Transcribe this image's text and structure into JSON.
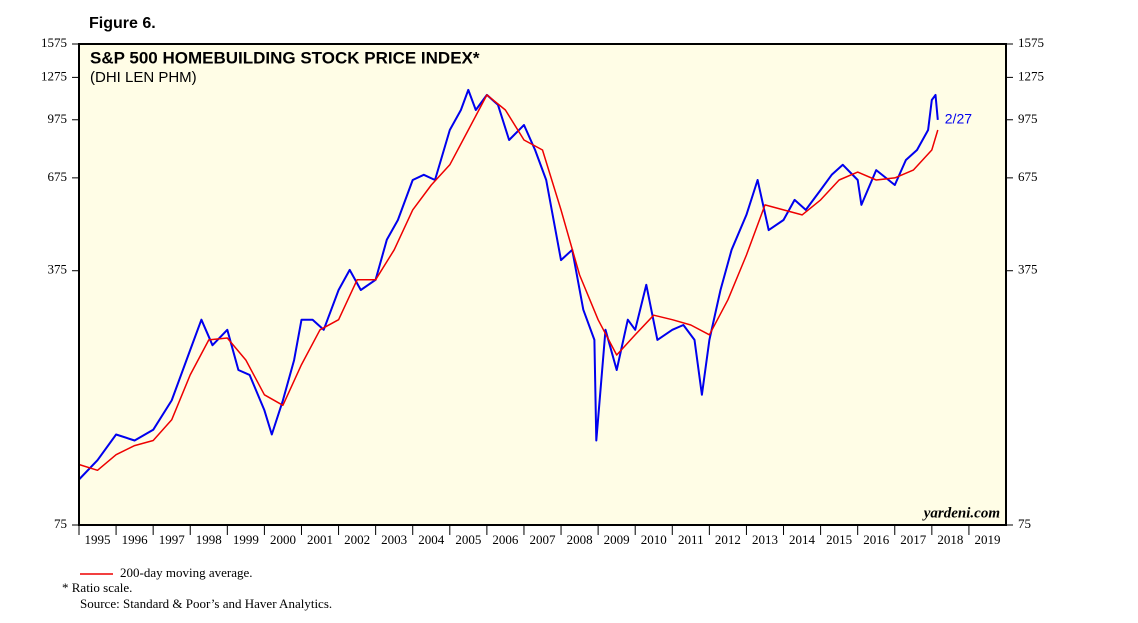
{
  "chart_data": {
    "type": "line",
    "figure_label": "Figure 6.",
    "title": "S&P 500 HOMEBUILDING STOCK PRICE INDEX*",
    "subtitle": "(DHI LEN PHM)",
    "watermark": "yardeni.com",
    "annotation": "2/27",
    "footnote": "*  Ratio scale.",
    "source": "Source: Standard & Poor’s and Haver Analytics.",
    "log_scale": true,
    "xlim": [
      1995,
      2020
    ],
    "xticks": [
      1995,
      1996,
      1997,
      1998,
      1999,
      2000,
      2001,
      2002,
      2003,
      2004,
      2005,
      2006,
      2007,
      2008,
      2009,
      2010,
      2011,
      2012,
      2013,
      2014,
      2015,
      2016,
      2017,
      2018,
      2019
    ],
    "ylim": [
      75,
      1575
    ],
    "yticks": [
      75,
      375,
      675,
      975,
      1275,
      1575
    ],
    "series": [
      {
        "color": "#0000ee",
        "x": [
          1995.0,
          1995.5,
          1996.0,
          1996.5,
          1997.0,
          1997.5,
          1998.0,
          1998.3,
          1998.6,
          1999.0,
          1999.3,
          1999.6,
          2000.0,
          2000.2,
          2000.5,
          2000.8,
          2001.0,
          2001.3,
          2001.6,
          2002.0,
          2002.3,
          2002.6,
          2003.0,
          2003.3,
          2003.6,
          2004.0,
          2004.3,
          2004.6,
          2005.0,
          2005.3,
          2005.5,
          2005.7,
          2006.0,
          2006.3,
          2006.6,
          2007.0,
          2007.3,
          2007.6,
          2008.0,
          2008.3,
          2008.6,
          2008.9,
          2008.95,
          2009.2,
          2009.5,
          2009.8,
          2010.0,
          2010.3,
          2010.6,
          2011.0,
          2011.3,
          2011.6,
          2011.8,
          2012.0,
          2012.3,
          2012.6,
          2013.0,
          2013.3,
          2013.6,
          2014.0,
          2014.3,
          2014.6,
          2015.0,
          2015.3,
          2015.6,
          2016.0,
          2016.1,
          2016.5,
          2017.0,
          2017.3,
          2017.6,
          2017.9,
          2018.0,
          2018.1,
          2018.16
        ],
        "values": [
          100,
          113,
          133,
          128,
          137,
          165,
          227,
          275,
          234,
          258,
          200,
          194,
          155,
          133,
          165,
          213,
          275,
          275,
          258,
          332,
          377,
          332,
          354,
          456,
          517,
          666,
          688,
          666,
          914,
          1037,
          1178,
          1037,
          1141,
          1071,
          858,
          943,
          805,
          666,
          401,
          428,
          293,
          242,
          128,
          258,
          200,
          275,
          258,
          343,
          242,
          258,
          266,
          242,
          171,
          242,
          332,
          428,
          534,
          666,
          485,
          517,
          587,
          551,
          625,
          688,
          733,
          666,
          569,
          709,
          645,
          756,
          805,
          914,
          1105,
          1141,
          974
        ]
      },
      {
        "name": "200-day moving average.",
        "color": "#ee0000",
        "x": [
          1995.0,
          1995.5,
          1996.0,
          1996.5,
          1997.0,
          1997.5,
          1998.0,
          1998.5,
          1999.0,
          1999.5,
          2000.0,
          2000.5,
          2001.0,
          2001.5,
          2002.0,
          2002.5,
          2003.0,
          2003.5,
          2004.0,
          2004.5,
          2005.0,
          2005.5,
          2006.0,
          2006.5,
          2007.0,
          2007.5,
          2008.0,
          2008.5,
          2009.0,
          2009.5,
          2010.0,
          2010.5,
          2011.0,
          2011.5,
          2012.0,
          2012.5,
          2013.0,
          2013.5,
          2014.0,
          2014.5,
          2015.0,
          2015.5,
          2016.0,
          2016.5,
          2017.0,
          2017.5,
          2018.0,
          2018.16
        ],
        "values": [
          110,
          106,
          117,
          124,
          128,
          146,
          194,
          242,
          245,
          213,
          171,
          160,
          207,
          258,
          275,
          354,
          354,
          428,
          551,
          645,
          733,
          914,
          1141,
          1037,
          858,
          805,
          551,
          365,
          275,
          220,
          250,
          283,
          275,
          266,
          250,
          312,
          414,
          569,
          551,
          534,
          587,
          666,
          700,
          666,
          675,
          709,
          805,
          914
        ]
      }
    ]
  }
}
